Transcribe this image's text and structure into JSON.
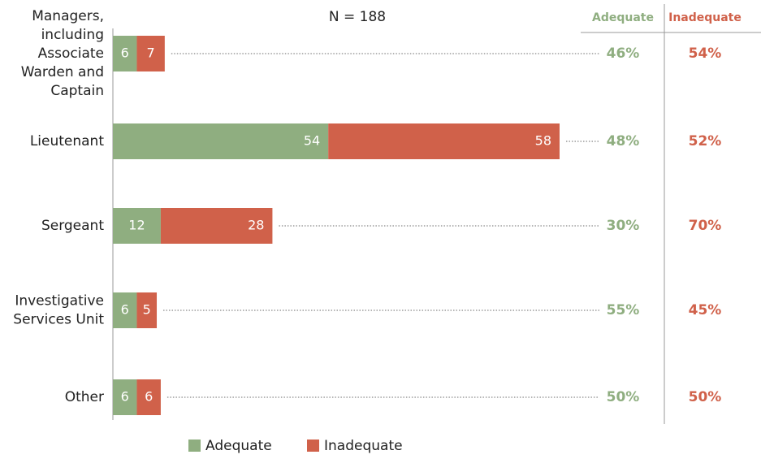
{
  "chart_data": {
    "type": "stacked_bar_horizontal",
    "title": "N = 188",
    "categories": [
      [
        "Managers,",
        "including",
        "Associate",
        "Warden and",
        "Captain"
      ],
      [
        "Lieutenant"
      ],
      [
        "Sergeant"
      ],
      [
        "Investigative",
        "Services Unit"
      ],
      [
        "Other"
      ]
    ],
    "series": [
      {
        "name": "Adequate",
        "color": "#8fae80",
        "values": [
          6,
          54,
          12,
          6,
          6
        ]
      },
      {
        "name": "Inadequate",
        "color": "#d0614a",
        "values": [
          7,
          58,
          28,
          5,
          6
        ]
      }
    ],
    "side_columns": [
      {
        "name": "Adequate",
        "color": "#8fae80",
        "values": [
          46,
          48,
          30,
          55,
          50
        ],
        "value_labels": [
          "46%",
          "48%",
          "30%",
          "55%",
          "50%"
        ]
      },
      {
        "name": "Inadequate",
        "color": "#d0614a",
        "values": [
          54,
          52,
          70,
          45,
          50
        ],
        "value_labels": [
          "54%",
          "52%",
          "70%",
          "45%",
          "50%"
        ]
      }
    ]
  }
}
